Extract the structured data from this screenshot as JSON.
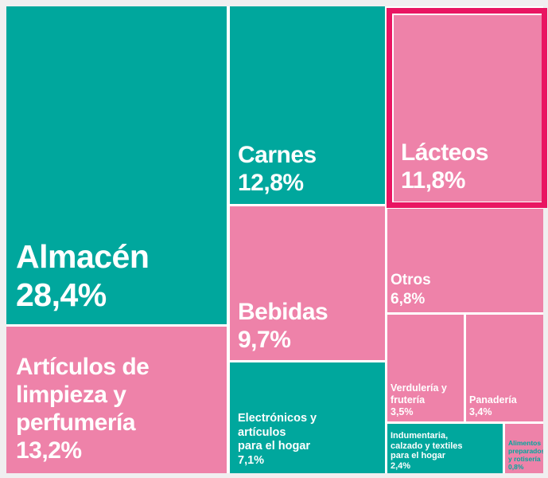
{
  "colors": {
    "teal": "#00a79d",
    "pink": "#ee82a9",
    "highlight": "#e91562",
    "background": "#f0eff0",
    "gap": "#ffffff",
    "label_text": "#ffffff"
  },
  "chart_data": {
    "type": "treemap",
    "unit": "%",
    "value_format": "es-AR decimal comma",
    "highlighted_item": "Lácteos",
    "items": [
      {
        "label": "Almacén",
        "value": 28.4,
        "label_display": "Almacén",
        "value_display": "28,4%",
        "color": "teal"
      },
      {
        "label": "Artículos de limpieza y perfumería",
        "value": 13.2,
        "label_display": "Artículos de\nlimpieza y\nperfumería",
        "value_display": "13,2%",
        "color": "pink"
      },
      {
        "label": "Carnes",
        "value": 12.8,
        "label_display": "Carnes",
        "value_display": "12,8%",
        "color": "teal"
      },
      {
        "label": "Lácteos",
        "value": 11.8,
        "label_display": "Lácteos",
        "value_display": "11,8%",
        "color": "pink",
        "highlighted": true
      },
      {
        "label": "Bebidas",
        "value": 9.7,
        "label_display": "Bebidas",
        "value_display": "9,7%",
        "color": "pink"
      },
      {
        "label": "Electrónicos y artículos para el hogar",
        "value": 7.1,
        "label_display": "Electrónicos y\nartículos\npara el hogar",
        "value_display": "7,1%",
        "color": "teal"
      },
      {
        "label": "Otros",
        "value": 6.8,
        "label_display": "Otros",
        "value_display": "6,8%",
        "color": "pink"
      },
      {
        "label": "Verdulería y frutería",
        "value": 3.5,
        "label_display": "Verdulería y\nfrutería",
        "value_display": "3,5%",
        "color": "pink"
      },
      {
        "label": "Panadería",
        "value": 3.4,
        "label_display": "Panadería",
        "value_display": "3,4%",
        "color": "pink"
      },
      {
        "label": "Indumentaria, calzado y textiles para el hogar",
        "value": 2.4,
        "label_display": "Indumentaria,\ncalzado y textiles\npara el hogar",
        "value_display": "2,4%",
        "color": "teal"
      },
      {
        "label": "Alimentos preparados y rotisería",
        "value": 0.8,
        "label_display": "Alimentos\npreparados\ny rotisería",
        "value_display": "0,8%",
        "color": "pink",
        "text_color": "teal"
      }
    ]
  }
}
